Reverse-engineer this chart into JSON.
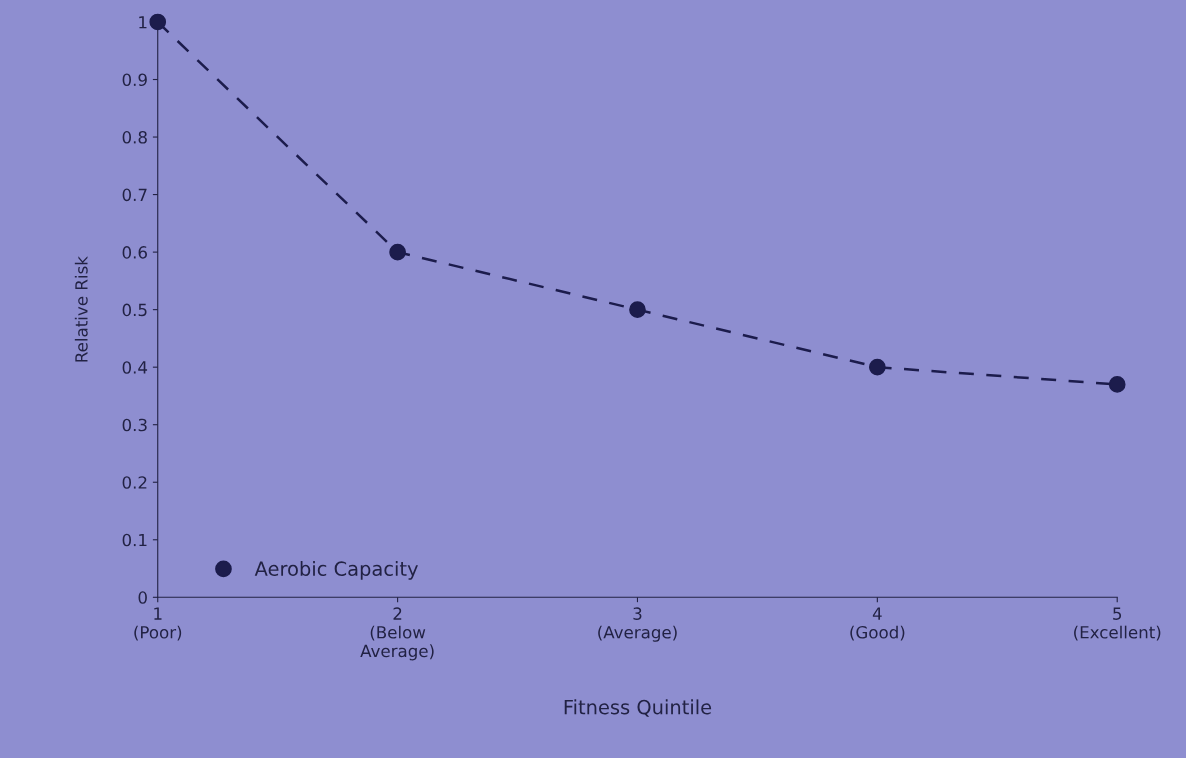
{
  "chart_data": {
    "type": "line",
    "xlabel": "Fitness Quintile",
    "ylabel": "Relative Risk",
    "categories": [
      "1\n(Poor)",
      "2\n(Below\nAverage)",
      "3\n(Average)",
      "4\n(Good)",
      "5\n(Excellent)"
    ],
    "series": [
      {
        "name": "Aerobic Capacity",
        "color": "#1c1c4c",
        "values": [
          1,
          0.6,
          0.5,
          0.4,
          0.37
        ]
      }
    ],
    "ylim": [
      0,
      1
    ],
    "yticks": [
      0,
      0.1,
      0.2,
      0.3,
      0.4,
      0.5,
      0.6,
      0.7,
      0.8,
      0.9,
      1
    ],
    "marker": "circle",
    "line_style": "dashed",
    "legend": "bottom left",
    "grid": false
  }
}
